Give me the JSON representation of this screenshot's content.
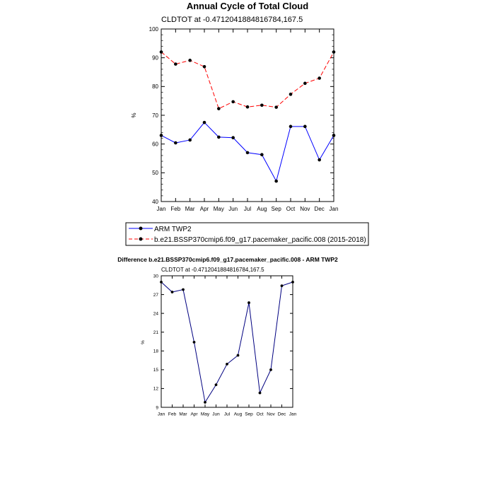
{
  "chart_data": [
    {
      "type": "line",
      "title": "Annual Cycle of Total Cloud",
      "subtitle": "CLDTOT at -0.4712041884816784,167.5",
      "xlabel": "",
      "ylabel": "%",
      "categories": [
        "Jan",
        "Feb",
        "Mar",
        "Apr",
        "May",
        "Jun",
        "Jul",
        "Aug",
        "Sep",
        "Oct",
        "Nov",
        "Dec",
        "Jan"
      ],
      "ylim": [
        40,
        100
      ],
      "yticks": [
        40,
        50,
        60,
        70,
        80,
        90,
        100
      ],
      "series": [
        {
          "name": "ARM TWP2",
          "color": "#0000ff",
          "style": "solid",
          "values": [
            63.0,
            60.4,
            61.4,
            67.5,
            62.4,
            62.2,
            57.0,
            56.3,
            47.1,
            66.1,
            66.1,
            54.5,
            63.0
          ]
        },
        {
          "name": "b.e21.BSSP370cmip6.f09_g17.pacemaker_pacific.008 (2015-2018)",
          "color": "#ff0000",
          "style": "dashed",
          "values": [
            92.0,
            87.8,
            89.1,
            86.9,
            72.3,
            74.7,
            72.9,
            73.5,
            72.8,
            77.3,
            81.1,
            82.9,
            92.0
          ]
        }
      ]
    },
    {
      "type": "line",
      "title": "Difference b.e21.BSSP370cmip6.f09_g17.pacemaker_pacific.008 - ARM TWP2",
      "subtitle": "CLDTOT at -0.4712041884816784,167.5",
      "xlabel": "",
      "ylabel": "%",
      "categories": [
        "Jan",
        "Feb",
        "Mar",
        "Apr",
        "May",
        "Jun",
        "Jul",
        "Aug",
        "Sep",
        "Oct",
        "Nov",
        "Dec",
        "Jan"
      ],
      "ylim": [
        9,
        30
      ],
      "yticks": [
        9,
        12,
        15,
        18,
        21,
        24,
        27,
        30
      ],
      "series": [
        {
          "name": "Difference",
          "color": "#000080",
          "style": "solid",
          "values": [
            29.0,
            27.4,
            27.8,
            19.4,
            9.8,
            12.6,
            15.9,
            17.3,
            25.7,
            11.3,
            15.0,
            28.4,
            29.0
          ]
        }
      ]
    }
  ]
}
